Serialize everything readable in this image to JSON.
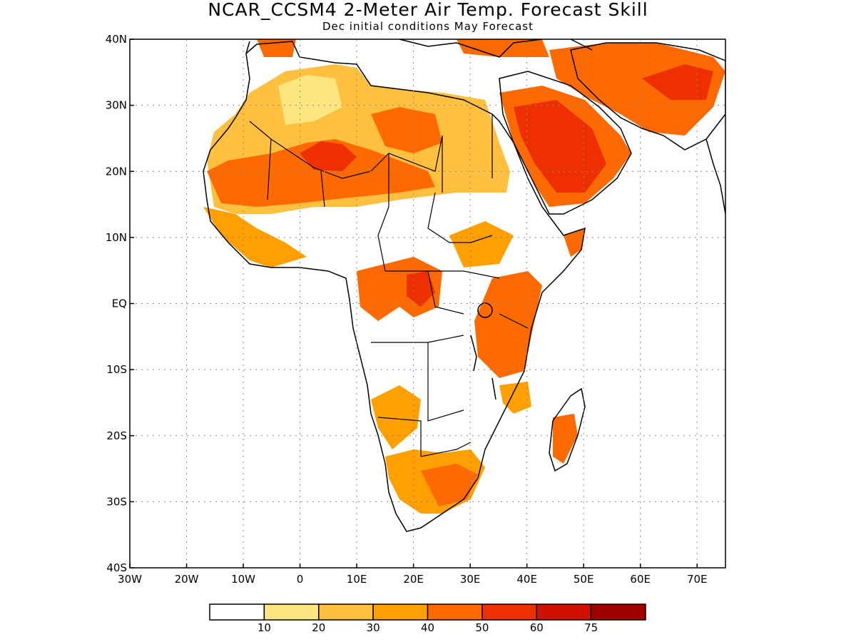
{
  "header": {
    "title": "NCAR_CCSM4 2-Meter Air Temp. Forecast Skill",
    "subtitle": "Dec initial conditions  May Forecast"
  },
  "axes": {
    "lon_ticks": [
      "30W",
      "20W",
      "10W",
      "0",
      "10E",
      "20E",
      "30E",
      "40E",
      "50E",
      "60E",
      "70E"
    ],
    "lat_ticks": [
      "40N",
      "30N",
      "20N",
      "10N",
      "EQ",
      "10S",
      "20S",
      "30S",
      "40S"
    ],
    "lon_range": [
      -30,
      75
    ],
    "lat_range": [
      -40,
      40
    ],
    "grid": "dotted"
  },
  "colorbar": {
    "labels": [
      "10",
      "20",
      "30",
      "40",
      "50",
      "60",
      "75"
    ],
    "colors": [
      "#ffffff",
      "#ffe680",
      "#ffc040",
      "#ffa000",
      "#ff6a00",
      "#ee3000",
      "#d01000",
      "#a00000"
    ]
  },
  "palette": {
    "water": "#ffffff",
    "coast": "#000000"
  }
}
